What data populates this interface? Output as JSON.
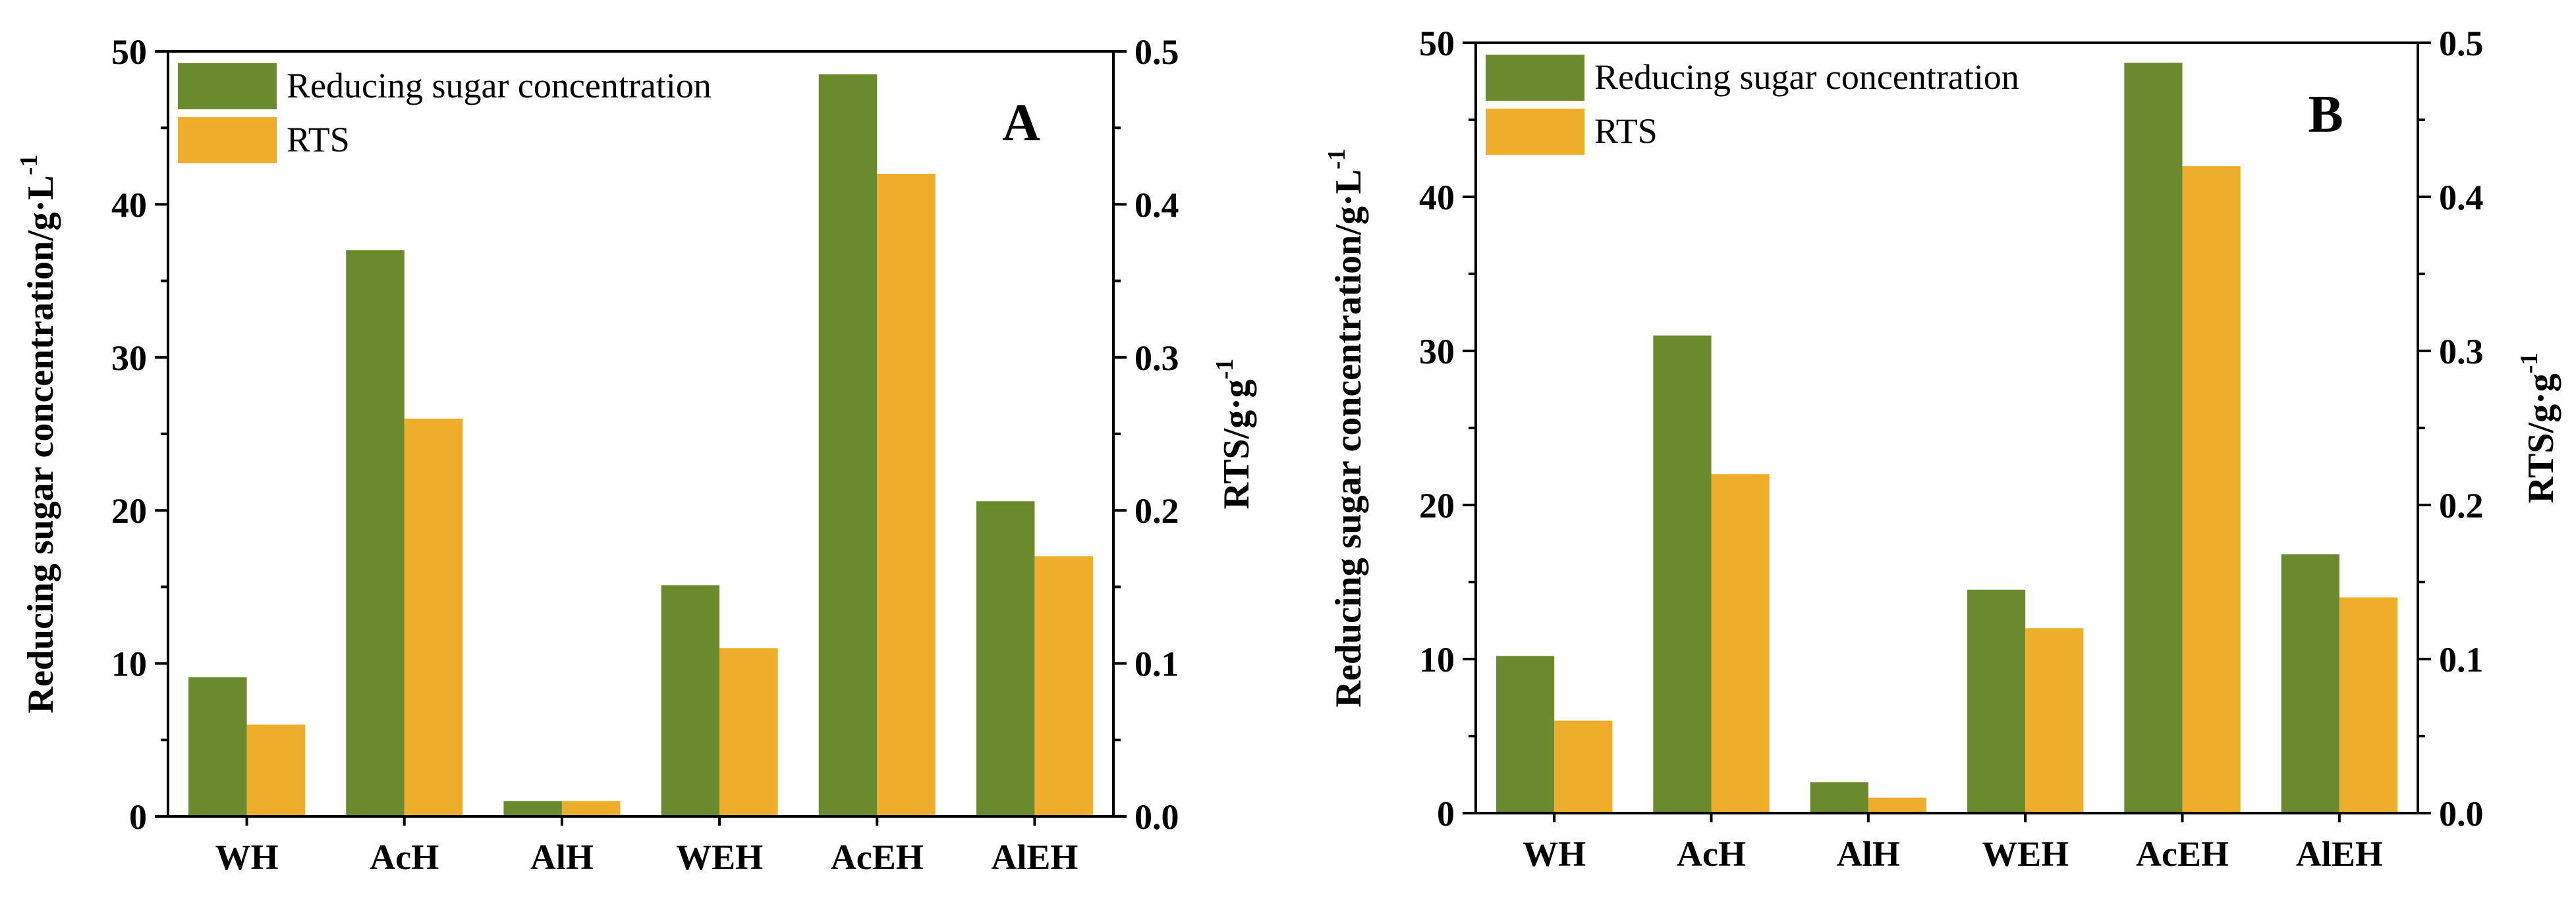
{
  "colors": {
    "green": "#6a8a2d",
    "orange": "#eeae2c",
    "axis": "#000000"
  },
  "chart_data": [
    {
      "type": "bar",
      "panel": "A",
      "categories": [
        "WH",
        "AcH",
        "AlH",
        "WEH",
        "AcEH",
        "AlEH"
      ],
      "series": [
        {
          "name": "Reducing sugar concentration",
          "axis": "left",
          "values": [
            9.1,
            37.0,
            1.0,
            15.1,
            48.5,
            20.6
          ]
        },
        {
          "name": "RTS",
          "axis": "right",
          "values": [
            0.06,
            0.26,
            0.01,
            0.11,
            0.42,
            0.17
          ]
        }
      ],
      "ylabel": "Reducing sugar concentration/g·L",
      "ylabel_sup": "-1",
      "y2label": "RTS/g·g",
      "y2label_sup": "-1",
      "ylim": [
        0,
        50
      ],
      "y2lim": [
        0,
        0.5
      ],
      "yticks": [
        "0",
        "10",
        "20",
        "30",
        "40",
        "50"
      ],
      "y2ticks": [
        "0.0",
        "0.1",
        "0.2",
        "0.3",
        "0.4",
        "0.5"
      ],
      "legend": "top-left"
    },
    {
      "type": "bar",
      "panel": "B",
      "categories": [
        "WH",
        "AcH",
        "AlH",
        "WEH",
        "AcEH",
        "AlEH"
      ],
      "series": [
        {
          "name": "Reducing sugar concentration",
          "axis": "left",
          "values": [
            10.2,
            31.0,
            2.0,
            14.5,
            48.7,
            16.8
          ]
        },
        {
          "name": "RTS",
          "axis": "right",
          "values": [
            0.06,
            0.22,
            0.01,
            0.12,
            0.42,
            0.14
          ]
        }
      ],
      "ylabel": "Reducing sugar concentration/g·L",
      "ylabel_sup": "-1",
      "y2label": "RTS/g·g",
      "y2label_sup": "-1",
      "ylim": [
        0,
        50
      ],
      "y2lim": [
        0,
        0.5
      ],
      "yticks": [
        "0",
        "10",
        "20",
        "30",
        "40",
        "50"
      ],
      "y2ticks": [
        "0.0",
        "0.1",
        "0.2",
        "0.3",
        "0.4",
        "0.5"
      ],
      "legend": "top-left"
    }
  ]
}
